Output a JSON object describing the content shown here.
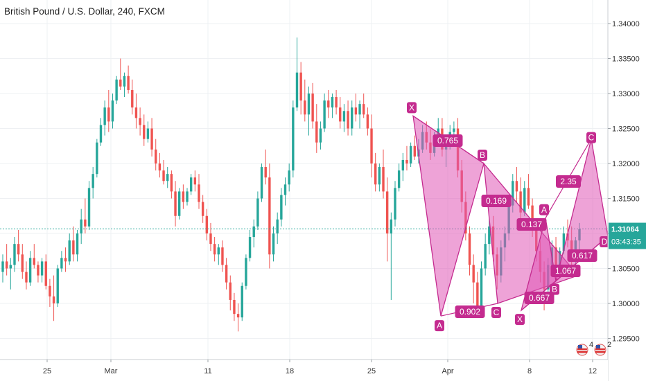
{
  "chart_title": "British Pound / U.S. Dollar, 240, FXCM",
  "colors": {
    "up": "#26a69a",
    "down": "#ef5350",
    "pattern_fill": "#e058b6",
    "pattern_stroke": "#c42b8f",
    "label_bg": "#c42b8f",
    "price_line": "#26a69a",
    "grid": "#eef0f3"
  },
  "price_axis": {
    "ticks": [
      "1.34000",
      "1.33500",
      "1.33000",
      "1.32500",
      "1.32000",
      "1.31500",
      "1.31000",
      "1.30500",
      "1.30000",
      "1.29500"
    ]
  },
  "time_axis": {
    "ticks": [
      "25",
      "Mar",
      "11",
      "18",
      "25",
      "Apr",
      "8",
      "12"
    ]
  },
  "current_price": {
    "value": "1.31064",
    "countdown": "03:43:35"
  },
  "status_icons": [
    {
      "icon": "us-flag-event-icon",
      "count": "4"
    },
    {
      "icon": "us-flag-event-icon",
      "count": "2"
    }
  ],
  "chart_data": {
    "type": "candlestick",
    "title": "British Pound / U.S. Dollar, 240, FXCM",
    "ylim": [
      1.2935,
      1.3425
    ],
    "candles": [
      [
        1.3045,
        1.307,
        1.303,
        1.306
      ],
      [
        1.306,
        1.3085,
        1.304,
        1.305
      ],
      [
        1.305,
        1.3065,
        1.302,
        1.3055
      ],
      [
        1.3055,
        1.3095,
        1.3045,
        1.3085
      ],
      [
        1.3085,
        1.3105,
        1.306,
        1.307
      ],
      [
        1.307,
        1.3085,
        1.3035,
        1.3045
      ],
      [
        1.3045,
        1.306,
        1.302,
        1.303
      ],
      [
        1.303,
        1.3075,
        1.3025,
        1.3065
      ],
      [
        1.3065,
        1.3085,
        1.305,
        1.3055
      ],
      [
        1.3055,
        1.306,
        1.303,
        1.304
      ],
      [
        1.304,
        1.3065,
        1.303,
        1.306
      ],
      [
        1.306,
        1.307,
        1.302,
        1.3025
      ],
      [
        1.3025,
        1.3035,
        1.2995,
        1.301
      ],
      [
        1.301,
        1.304,
        1.2975,
        1.3
      ],
      [
        1.3,
        1.3055,
        1.2995,
        1.305
      ],
      [
        1.305,
        1.3075,
        1.3045,
        1.3065
      ],
      [
        1.3065,
        1.308,
        1.3045,
        1.306
      ],
      [
        1.306,
        1.31,
        1.3055,
        1.309
      ],
      [
        1.309,
        1.311,
        1.306,
        1.307
      ],
      [
        1.307,
        1.3105,
        1.306,
        1.31
      ],
      [
        1.31,
        1.3135,
        1.3085,
        1.312
      ],
      [
        1.312,
        1.315,
        1.31,
        1.311
      ],
      [
        1.311,
        1.3175,
        1.3105,
        1.3165
      ],
      [
        1.3165,
        1.3195,
        1.315,
        1.3185
      ],
      [
        1.3185,
        1.3235,
        1.318,
        1.323
      ],
      [
        1.323,
        1.3265,
        1.3225,
        1.3255
      ],
      [
        1.3255,
        1.329,
        1.324,
        1.328
      ],
      [
        1.328,
        1.3305,
        1.3245,
        1.326
      ],
      [
        1.326,
        1.33,
        1.325,
        1.329
      ],
      [
        1.329,
        1.3325,
        1.3285,
        1.332
      ],
      [
        1.332,
        1.335,
        1.3305,
        1.331
      ],
      [
        1.331,
        1.333,
        1.3295,
        1.3325
      ],
      [
        1.3325,
        1.334,
        1.33,
        1.3305
      ],
      [
        1.3305,
        1.332,
        1.327,
        1.328
      ],
      [
        1.328,
        1.33,
        1.325,
        1.3265
      ],
      [
        1.3265,
        1.328,
        1.324,
        1.3255
      ],
      [
        1.3255,
        1.327,
        1.3225,
        1.3235
      ],
      [
        1.3235,
        1.326,
        1.323,
        1.325
      ],
      [
        1.325,
        1.3265,
        1.321,
        1.322
      ],
      [
        1.322,
        1.3235,
        1.319,
        1.32
      ],
      [
        1.32,
        1.3215,
        1.318,
        1.319
      ],
      [
        1.319,
        1.3205,
        1.317,
        1.3175
      ],
      [
        1.3175,
        1.3195,
        1.3165,
        1.3185
      ],
      [
        1.3185,
        1.319,
        1.315,
        1.316
      ],
      [
        1.316,
        1.3175,
        1.311,
        1.3125
      ],
      [
        1.3125,
        1.3165,
        1.312,
        1.316
      ],
      [
        1.316,
        1.317,
        1.3135,
        1.3145
      ],
      [
        1.3145,
        1.3165,
        1.314,
        1.316
      ],
      [
        1.316,
        1.3185,
        1.3155,
        1.318
      ],
      [
        1.318,
        1.319,
        1.316,
        1.317
      ],
      [
        1.317,
        1.3185,
        1.3135,
        1.3145
      ],
      [
        1.3145,
        1.3155,
        1.3115,
        1.3125
      ],
      [
        1.3125,
        1.3135,
        1.309,
        1.31
      ],
      [
        1.31,
        1.3115,
        1.3075,
        1.3085
      ],
      [
        1.3085,
        1.3095,
        1.306,
        1.307
      ],
      [
        1.307,
        1.3085,
        1.3055,
        1.308
      ],
      [
        1.308,
        1.309,
        1.3045,
        1.3055
      ],
      [
        1.3055,
        1.3065,
        1.302,
        1.303
      ],
      [
        1.303,
        1.304,
        1.299,
        1.3005
      ],
      [
        1.3005,
        1.3015,
        1.2975,
        1.2985
      ],
      [
        1.2985,
        1.3,
        1.296,
        1.298
      ],
      [
        1.298,
        1.303,
        1.2975,
        1.3025
      ],
      [
        1.3025,
        1.307,
        1.302,
        1.3065
      ],
      [
        1.3065,
        1.3105,
        1.306,
        1.3095
      ],
      [
        1.3095,
        1.312,
        1.308,
        1.311
      ],
      [
        1.311,
        1.316,
        1.3105,
        1.315
      ],
      [
        1.315,
        1.32,
        1.3145,
        1.3195
      ],
      [
        1.3195,
        1.322,
        1.317,
        1.318
      ],
      [
        1.318,
        1.32,
        1.305,
        1.307
      ],
      [
        1.307,
        1.311,
        1.306,
        1.31
      ],
      [
        1.31,
        1.313,
        1.3085,
        1.312
      ],
      [
        1.312,
        1.3165,
        1.311,
        1.3155
      ],
      [
        1.3155,
        1.318,
        1.314,
        1.317
      ],
      [
        1.317,
        1.32,
        1.316,
        1.319
      ],
      [
        1.319,
        1.329,
        1.318,
        1.328
      ],
      [
        1.328,
        1.338,
        1.3275,
        1.333
      ],
      [
        1.333,
        1.3345,
        1.327,
        1.329
      ],
      [
        1.329,
        1.332,
        1.326,
        1.327
      ],
      [
        1.327,
        1.331,
        1.324,
        1.33
      ],
      [
        1.33,
        1.3315,
        1.325,
        1.326
      ],
      [
        1.326,
        1.3285,
        1.3215,
        1.323
      ],
      [
        1.323,
        1.326,
        1.322,
        1.325
      ],
      [
        1.325,
        1.33,
        1.3245,
        1.329
      ],
      [
        1.329,
        1.3305,
        1.3265,
        1.328
      ],
      [
        1.328,
        1.33,
        1.3265,
        1.3295
      ],
      [
        1.3295,
        1.3305,
        1.327,
        1.328
      ],
      [
        1.328,
        1.3295,
        1.325,
        1.326
      ],
      [
        1.326,
        1.3285,
        1.3245,
        1.3275
      ],
      [
        1.3275,
        1.329,
        1.324,
        1.325
      ],
      [
        1.325,
        1.329,
        1.324,
        1.328
      ],
      [
        1.328,
        1.33,
        1.326,
        1.327
      ],
      [
        1.327,
        1.329,
        1.325,
        1.3285
      ],
      [
        1.3285,
        1.33,
        1.3265,
        1.327
      ],
      [
        1.327,
        1.328,
        1.324,
        1.325
      ],
      [
        1.325,
        1.327,
        1.318,
        1.32
      ],
      [
        1.32,
        1.3215,
        1.316,
        1.317
      ],
      [
        1.317,
        1.32,
        1.316,
        1.3195
      ],
      [
        1.3195,
        1.322,
        1.315,
        1.316
      ],
      [
        1.316,
        1.318,
        1.306,
        1.31
      ],
      [
        1.31,
        1.313,
        1.3005,
        1.312
      ],
      [
        1.312,
        1.3175,
        1.311,
        1.3165
      ],
      [
        1.3165,
        1.32,
        1.316,
        1.319
      ],
      [
        1.319,
        1.3215,
        1.3175,
        1.3205
      ],
      [
        1.3205,
        1.3225,
        1.319,
        1.32
      ],
      [
        1.32,
        1.323,
        1.3195,
        1.3225
      ],
      [
        1.3225,
        1.324,
        1.3205,
        1.321
      ],
      [
        1.321,
        1.3235,
        1.32,
        1.322
      ],
      [
        1.322,
        1.3255,
        1.3215,
        1.3245
      ],
      [
        1.3245,
        1.326,
        1.322,
        1.323
      ],
      [
        1.323,
        1.325,
        1.3205,
        1.3215
      ],
      [
        1.3215,
        1.3245,
        1.321,
        1.324
      ],
      [
        1.324,
        1.3265,
        1.3225,
        1.325
      ],
      [
        1.325,
        1.3265,
        1.321,
        1.322
      ],
      [
        1.322,
        1.324,
        1.3195,
        1.323
      ],
      [
        1.323,
        1.3255,
        1.322,
        1.3245
      ],
      [
        1.3245,
        1.326,
        1.323,
        1.325
      ],
      [
        1.325,
        1.3265,
        1.318,
        1.319
      ],
      [
        1.319,
        1.3205,
        1.313,
        1.3145
      ],
      [
        1.3145,
        1.316,
        1.309,
        1.31
      ],
      [
        1.31,
        1.311,
        1.304,
        1.3055
      ],
      [
        1.3055,
        1.307,
        1.3,
        1.303
      ],
      [
        1.303,
        1.3045,
        1.2985,
        1.2995
      ],
      [
        1.2995,
        1.306,
        1.2985,
        1.305
      ],
      [
        1.305,
        1.31,
        1.304,
        1.3085
      ],
      [
        1.3085,
        1.312,
        1.307,
        1.311
      ],
      [
        1.311,
        1.3125,
        1.306,
        1.307
      ],
      [
        1.307,
        1.308,
        1.302,
        1.304
      ],
      [
        1.304,
        1.309,
        1.303,
        1.308
      ],
      [
        1.308,
        1.311,
        1.306,
        1.31
      ],
      [
        1.31,
        1.315,
        1.309,
        1.314
      ],
      [
        1.314,
        1.3185,
        1.313,
        1.3175
      ],
      [
        1.3175,
        1.3195,
        1.3145,
        1.316
      ],
      [
        1.316,
        1.318,
        1.312,
        1.313
      ],
      [
        1.313,
        1.3175,
        1.3125,
        1.3165
      ],
      [
        1.3165,
        1.3185,
        1.3135,
        1.314
      ],
      [
        1.314,
        1.315,
        1.3095,
        1.3105
      ],
      [
        1.3105,
        1.312,
        1.306,
        1.3075
      ],
      [
        1.3075,
        1.309,
        1.303,
        1.3045
      ],
      [
        1.3045,
        1.306,
        1.299,
        1.302
      ],
      [
        1.302,
        1.3065,
        1.301,
        1.3055
      ],
      [
        1.3055,
        1.309,
        1.3045,
        1.308
      ],
      [
        1.308,
        1.3095,
        1.304,
        1.305
      ],
      [
        1.305,
        1.308,
        1.3045,
        1.3075
      ],
      [
        1.3075,
        1.311,
        1.307,
        1.31
      ],
      [
        1.31,
        1.312,
        1.308,
        1.309
      ],
      [
        1.309,
        1.311,
        1.304,
        1.306
      ],
      [
        1.306,
        1.3095,
        1.3055,
        1.309
      ],
      [
        1.309,
        1.3115,
        1.3075,
        1.3106
      ]
    ],
    "harmonic_patterns": [
      {
        "points": [
          {
            "label": "X",
            "price": 1.3268
          },
          {
            "label": "A",
            "price": 1.2982
          },
          {
            "label": "B",
            "price": 1.32
          },
          {
            "label": "C",
            "price": 1.3
          },
          {
            "label": "X",
            "price": 1.299
          },
          {
            "label": "A",
            "price": 1.3122
          },
          {
            "label": "B",
            "price": 1.3032
          }
        ],
        "ratios": [
          "0.765",
          "0.902",
          "0.169",
          "0.667"
        ]
      },
      {
        "points": [
          {
            "label": "C",
            "price": 1.3235
          },
          {
            "label": "D",
            "price": 1.3096
          }
        ],
        "ratios": [
          "0.137",
          "2.35",
          "0.617",
          "1.067"
        ]
      }
    ]
  }
}
